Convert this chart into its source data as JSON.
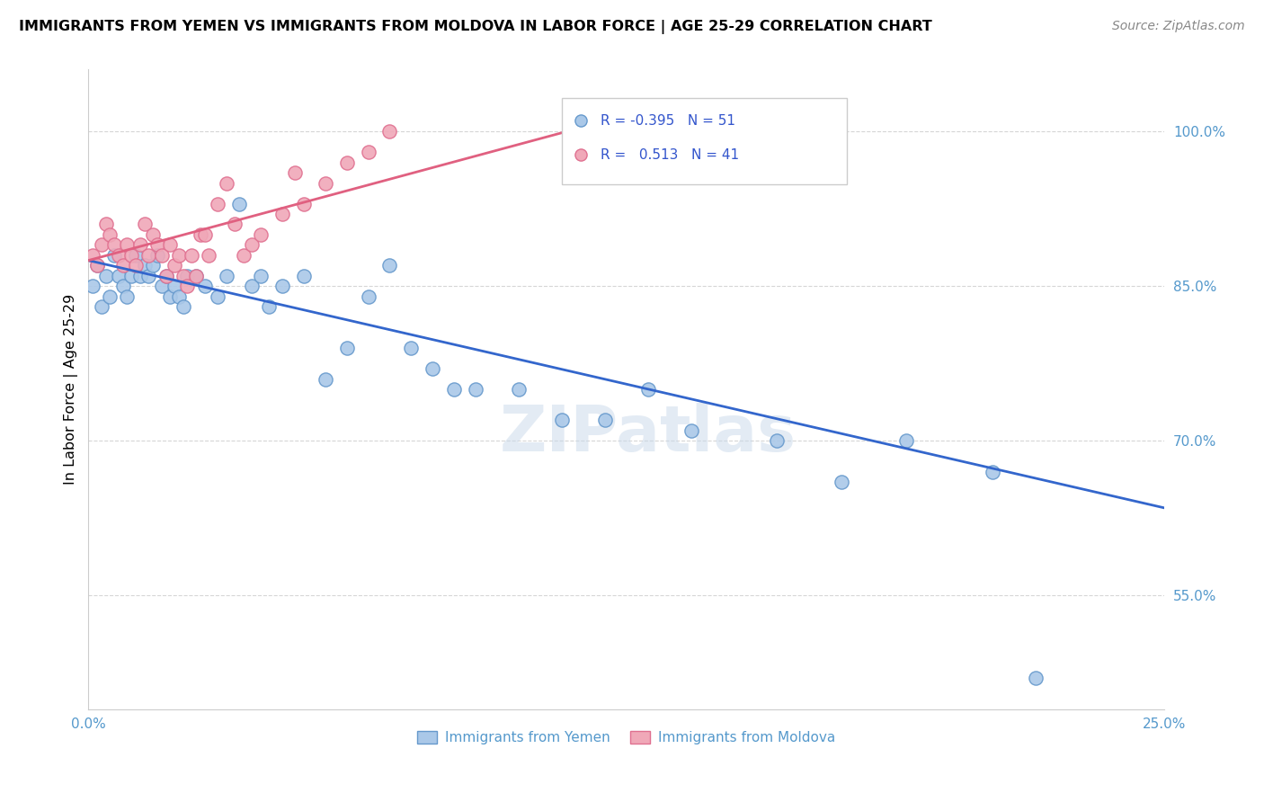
{
  "title": "IMMIGRANTS FROM YEMEN VS IMMIGRANTS FROM MOLDOVA IN LABOR FORCE | AGE 25-29 CORRELATION CHART",
  "source": "Source: ZipAtlas.com",
  "ylabel": "In Labor Force | Age 25-29",
  "x_min": 0.0,
  "x_max": 0.25,
  "y_min": 0.44,
  "y_max": 1.06,
  "x_ticks": [
    0.0,
    0.05,
    0.1,
    0.15,
    0.2,
    0.25
  ],
  "x_tick_labels": [
    "0.0%",
    "",
    "",
    "",
    "",
    "25.0%"
  ],
  "y_ticks": [
    0.55,
    0.7,
    0.85,
    1.0
  ],
  "y_tick_labels": [
    "55.0%",
    "70.0%",
    "85.0%",
    "100.0%"
  ],
  "yemen_color": "#aac8e8",
  "moldova_color": "#f0a8b8",
  "yemen_edge": "#6699cc",
  "moldova_edge": "#e07090",
  "trend_blue": "#3366cc",
  "trend_pink": "#e06080",
  "legend_r_yemen": "-0.395",
  "legend_n_yemen": "51",
  "legend_r_moldova": "0.513",
  "legend_n_moldova": "41",
  "watermark": "ZIPatlas",
  "background_color": "#ffffff",
  "yemen_x": [
    0.001,
    0.002,
    0.003,
    0.004,
    0.005,
    0.006,
    0.007,
    0.008,
    0.009,
    0.01,
    0.011,
    0.012,
    0.013,
    0.014,
    0.015,
    0.016,
    0.017,
    0.018,
    0.019,
    0.02,
    0.021,
    0.022,
    0.023,
    0.025,
    0.027,
    0.03,
    0.032,
    0.035,
    0.038,
    0.04,
    0.042,
    0.045,
    0.05,
    0.055,
    0.06,
    0.065,
    0.07,
    0.075,
    0.08,
    0.085,
    0.09,
    0.1,
    0.11,
    0.12,
    0.13,
    0.14,
    0.16,
    0.175,
    0.19,
    0.21,
    0.22
  ],
  "yemen_y": [
    0.85,
    0.87,
    0.83,
    0.86,
    0.84,
    0.88,
    0.86,
    0.85,
    0.84,
    0.86,
    0.88,
    0.86,
    0.87,
    0.86,
    0.87,
    0.88,
    0.85,
    0.86,
    0.84,
    0.85,
    0.84,
    0.83,
    0.86,
    0.86,
    0.85,
    0.84,
    0.86,
    0.93,
    0.85,
    0.86,
    0.83,
    0.85,
    0.86,
    0.76,
    0.79,
    0.84,
    0.87,
    0.79,
    0.77,
    0.75,
    0.75,
    0.75,
    0.72,
    0.72,
    0.75,
    0.71,
    0.7,
    0.66,
    0.7,
    0.67,
    0.47
  ],
  "moldova_x": [
    0.001,
    0.002,
    0.003,
    0.004,
    0.005,
    0.006,
    0.007,
    0.008,
    0.009,
    0.01,
    0.011,
    0.012,
    0.013,
    0.014,
    0.015,
    0.016,
    0.017,
    0.018,
    0.019,
    0.02,
    0.021,
    0.022,
    0.023,
    0.024,
    0.025,
    0.026,
    0.027,
    0.028,
    0.03,
    0.032,
    0.034,
    0.036,
    0.038,
    0.04,
    0.045,
    0.048,
    0.05,
    0.055,
    0.06,
    0.065,
    0.07
  ],
  "moldova_y": [
    0.88,
    0.87,
    0.89,
    0.91,
    0.9,
    0.89,
    0.88,
    0.87,
    0.89,
    0.88,
    0.87,
    0.89,
    0.91,
    0.88,
    0.9,
    0.89,
    0.88,
    0.86,
    0.89,
    0.87,
    0.88,
    0.86,
    0.85,
    0.88,
    0.86,
    0.9,
    0.9,
    0.88,
    0.93,
    0.95,
    0.91,
    0.88,
    0.89,
    0.9,
    0.92,
    0.96,
    0.93,
    0.95,
    0.97,
    0.98,
    1.0
  ],
  "blue_line_x0": 0.0,
  "blue_line_x1": 0.25,
  "blue_line_y0": 0.875,
  "blue_line_y1": 0.635,
  "pink_line_x0": 0.0,
  "pink_line_x1": 0.12,
  "pink_line_y0": 0.875,
  "pink_line_y1": 1.01
}
